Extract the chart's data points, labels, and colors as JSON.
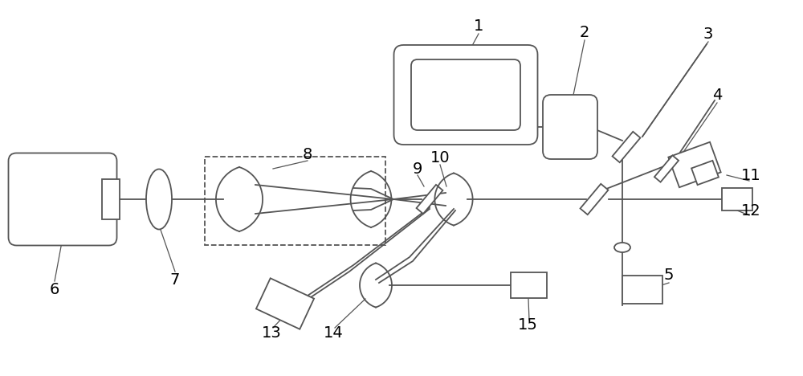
{
  "bg_color": "#ffffff",
  "line_color": "#555555",
  "label_color": "#000000",
  "fig_width": 10.0,
  "fig_height": 4.68,
  "dpi": 100
}
